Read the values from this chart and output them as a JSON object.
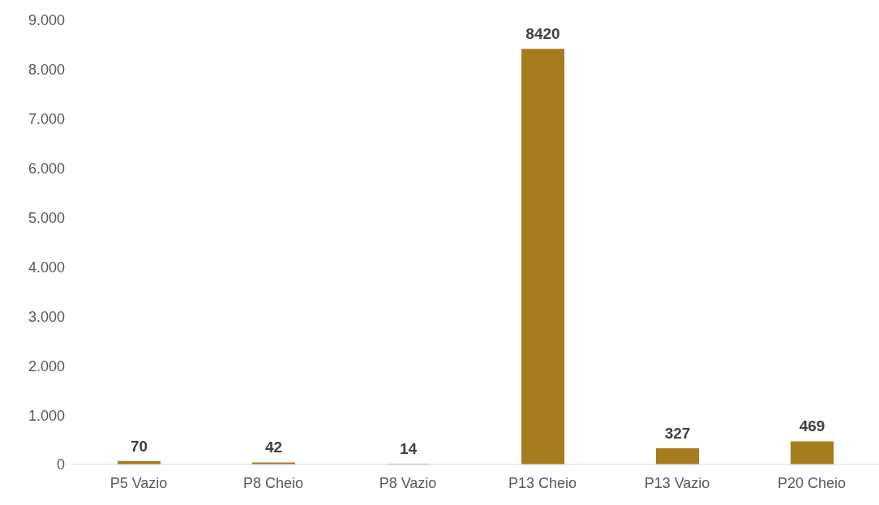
{
  "chart_data": {
    "type": "bar",
    "categories": [
      "P5 Vazio",
      "P8 Cheio",
      "P8 Vazio",
      "P13 Cheio",
      "P13 Vazio",
      "P20 Cheio"
    ],
    "values": [
      70,
      42,
      14,
      8420,
      327,
      469
    ],
    "color": "#a67c1f",
    "data_labels": true,
    "grid": false,
    "ylim": [
      0,
      9000
    ],
    "yticks": [
      0,
      {
        "value": 1000,
        "label": "1.000"
      },
      {
        "value": 2000,
        "label": "2.000"
      },
      {
        "value": 3000,
        "label": "3.000"
      },
      {
        "value": 4000,
        "label": "4.000"
      },
      {
        "value": 5000,
        "label": "5.000"
      },
      {
        "value": 6000,
        "label": "6.000"
      },
      {
        "value": 7000,
        "label": "7.000"
      },
      {
        "value": 8000,
        "label": "8.000"
      },
      {
        "value": 9000,
        "label": "9.000"
      }
    ]
  }
}
